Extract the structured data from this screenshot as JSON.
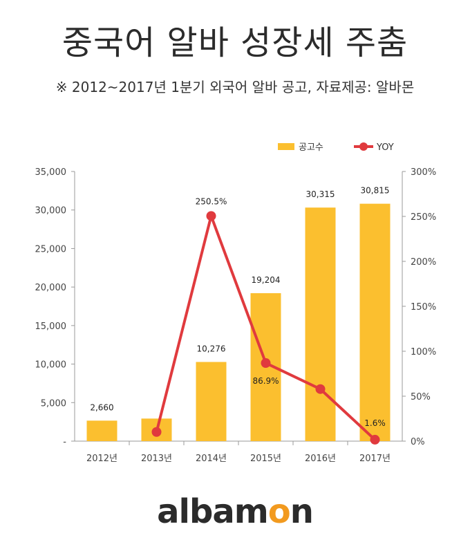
{
  "title": "중국어 알바 성장세 주춤",
  "subtitle": "※ 2012~2017년  1분기 외국어 알바 공고,  자료제공: 알바몬",
  "colors": {
    "bar": "#fbbf2f",
    "line": "#e03a3e",
    "axis": "#999999"
  },
  "chart_data": {
    "type": "bar",
    "categories": [
      "2012년",
      "2013년",
      "2014년",
      "2015년",
      "2016년",
      "2017년"
    ],
    "series": [
      {
        "name": "공고수",
        "type": "bar",
        "axis": "left",
        "values": [
          2660,
          2930,
          10276,
          19204,
          30315,
          30815
        ],
        "labels": [
          "2,660",
          "",
          "10,276",
          "19,204",
          "30,315",
          "30,815"
        ]
      },
      {
        "name": "YOY",
        "type": "line",
        "axis": "right",
        "values": [
          null,
          10.2,
          250.5,
          86.9,
          57.9,
          1.6
        ],
        "labels": [
          "",
          "",
          "250.5%",
          "86.9%",
          "",
          "1.6%"
        ]
      }
    ],
    "y_left": {
      "ticks": [
        "-",
        "5,000",
        "10,000",
        "15,000",
        "20,000",
        "25,000",
        "30,000",
        "35,000"
      ],
      "ylim": [
        0,
        35000
      ]
    },
    "y_right": {
      "ticks": [
        "0%",
        "50%",
        "100%",
        "150%",
        "200%",
        "250%",
        "300%"
      ],
      "ylim": [
        0,
        300
      ]
    },
    "legend": {
      "placement": "top-right",
      "items": [
        "공고수",
        "YOY"
      ]
    },
    "grid": false
  },
  "brand": {
    "logo_main": "albam",
    "logo_accent": "o",
    "logo_end": "n"
  }
}
